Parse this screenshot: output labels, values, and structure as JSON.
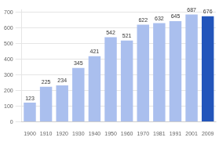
{
  "chart_data": {
    "type": "bar",
    "categories": [
      "1900",
      "1910",
      "1920",
      "1930",
      "1940",
      "1950",
      "1960",
      "1970",
      "1981",
      "1991",
      "2001",
      "2009"
    ],
    "values": [
      123,
      225,
      234,
      345,
      421,
      542,
      521,
      622,
      632,
      645,
      687,
      676
    ],
    "colors": [
      "#aabfee",
      "#aabfee",
      "#aabfee",
      "#aabfee",
      "#aabfee",
      "#aabfee",
      "#aabfee",
      "#aabfee",
      "#aabfee",
      "#aabfee",
      "#aabfee",
      "#2255bb"
    ],
    "ylim": [
      0,
      720
    ],
    "yticks": [
      0,
      100,
      200,
      300,
      400,
      500,
      600,
      700
    ],
    "grid": true,
    "data_labels": true
  }
}
